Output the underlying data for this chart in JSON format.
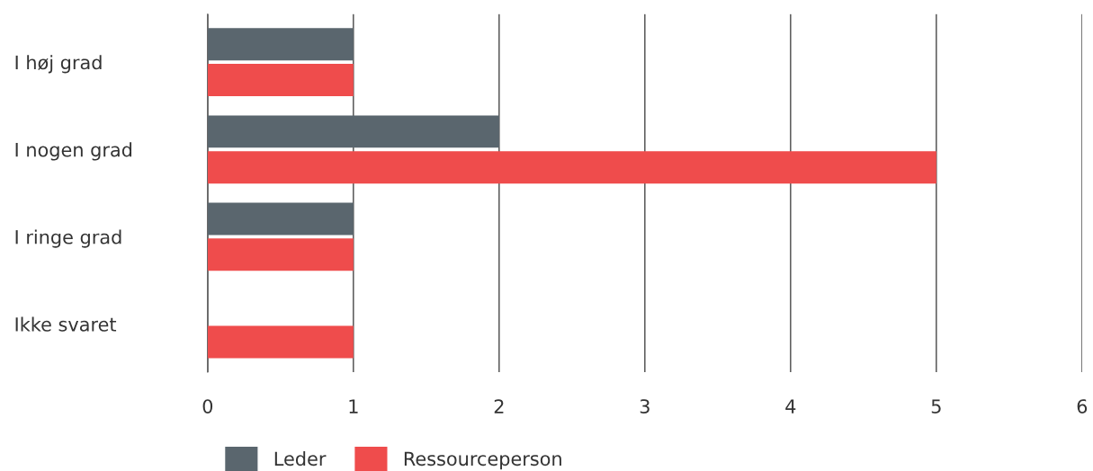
{
  "chart_data": {
    "type": "bar",
    "orientation": "horizontal",
    "categories": [
      "I høj grad",
      "I nogen grad",
      "I ringe grad",
      "Ikke svaret"
    ],
    "series": [
      {
        "name": "Leder",
        "color": "#5a666e",
        "values": [
          1,
          2,
          1,
          null
        ]
      },
      {
        "name": "Ressourceperson",
        "color": "#ef4c4c",
        "values": [
          1,
          5,
          1,
          1
        ]
      }
    ],
    "xlim": [
      0,
      6
    ],
    "xticks": [
      0,
      1,
      2,
      3,
      4,
      5,
      6
    ],
    "grid": "x",
    "legend": "bottom left"
  }
}
